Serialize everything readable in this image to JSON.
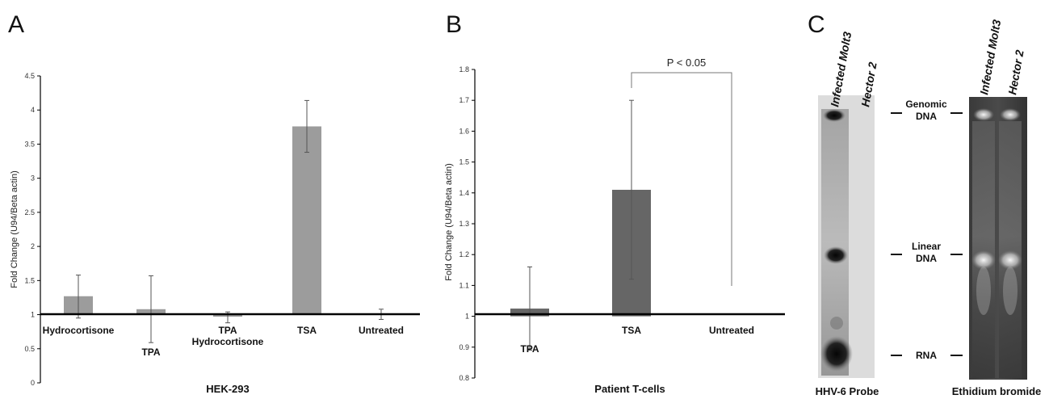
{
  "panels": [
    {
      "letter": "A"
    },
    {
      "letter": "B"
    },
    {
      "letter": "C"
    }
  ],
  "chart_data": [
    {
      "type": "bar",
      "panel": "A",
      "xlabel": "HEK-293",
      "ylabel": "Fold Change (U94/Beta actin)",
      "ylim": [
        0,
        4.5
      ],
      "yticks": [
        "0",
        "0.5",
        "1",
        "1.5",
        "2",
        "2.5",
        "3",
        "3.5",
        "4",
        "4.5"
      ],
      "baseline": 1,
      "categories": [
        "Hydrocortisone",
        "TPA",
        "TPA Hydrocortisone",
        "TSA",
        "Untreated"
      ],
      "values": [
        1.27,
        1.08,
        0.97,
        3.76,
        1.0
      ],
      "error": [
        [
          0.95,
          1.58
        ],
        [
          0.59,
          1.57
        ],
        [
          0.88,
          1.04
        ],
        [
          3.38,
          4.14
        ],
        [
          0.93,
          1.08
        ]
      ],
      "bar_color": "#9c9c9c"
    },
    {
      "type": "bar",
      "panel": "B",
      "xlabel": "Patient T-cells",
      "ylabel": "Fold Change (U94/Beta actin)",
      "ylim": [
        0.8,
        1.8
      ],
      "yticks": [
        "0.8",
        "0.9",
        "1",
        "1.1",
        "1.2",
        "1.3",
        "1.4",
        "1.5",
        "1.6",
        "1.7",
        "1.8"
      ],
      "baseline": 1,
      "categories": [
        "TPA",
        "TSA",
        "Untreated"
      ],
      "values": [
        1.025,
        1.41,
        1.0
      ],
      "error": [
        [
          0.89,
          1.16
        ],
        [
          1.12,
          1.7
        ],
        null
      ],
      "bar_color": "#666666",
      "annotation": "P < 0.05"
    }
  ],
  "gels": {
    "left_lanes": [
      "Infected Molt3",
      "Hector 2"
    ],
    "right_lanes": [
      "Infected Molt3",
      "Hector 2"
    ],
    "band_labels": [
      {
        "line1": "Genomic",
        "line2": "DNA"
      },
      {
        "line1": "Linear",
        "line2": "DNA"
      },
      {
        "line1": "RNA",
        "line2": ""
      }
    ],
    "left_caption": "HHV-6 Probe",
    "right_caption": "Ethidium bromide"
  }
}
